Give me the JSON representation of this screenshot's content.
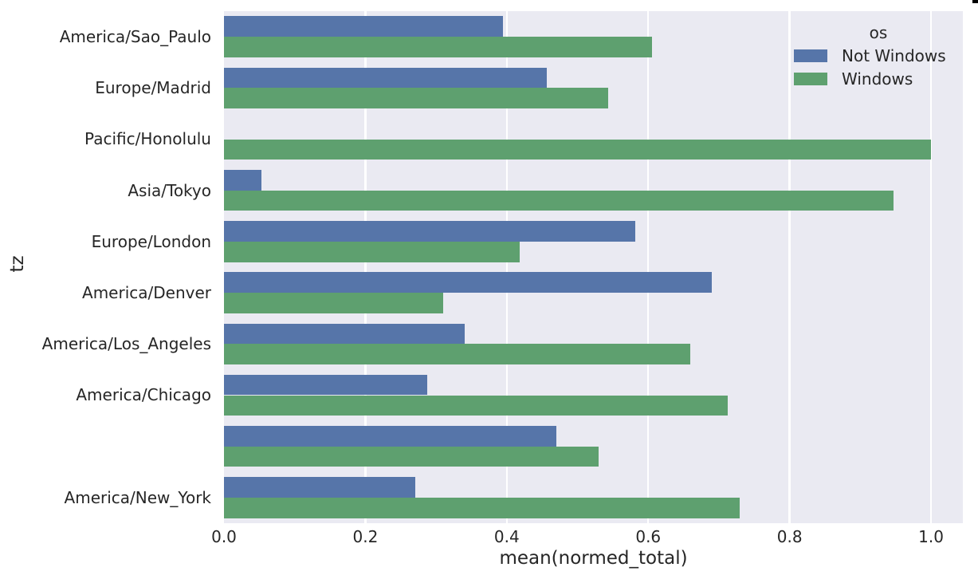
{
  "figure": {
    "x_axis_label": "mean(normed_total)",
    "y_axis_label": "tz"
  },
  "legend": {
    "title": "os",
    "entries": [
      {
        "label": "Not Windows",
        "color": "#5675A9"
      },
      {
        "label": "Windows",
        "color": "#5EA06F"
      }
    ]
  },
  "chart_data": {
    "type": "bar",
    "orientation": "horizontal",
    "title": "",
    "xlabel": "mean(normed_total)",
    "ylabel": "tz",
    "categories": [
      "America/Sao_Paulo",
      "Europe/Madrid",
      "Pacific/Honolulu",
      "Asia/Tokyo",
      "Europe/London",
      "America/Denver",
      "America/Los_Angeles",
      "America/Chicago",
      "",
      "America/New_York"
    ],
    "series": [
      {
        "name": "Not Windows",
        "color": "#5675A9",
        "values": [
          0.395,
          0.457,
          0.0,
          0.053,
          0.582,
          0.69,
          0.34,
          0.288,
          0.47,
          0.271
        ]
      },
      {
        "name": "Windows",
        "color": "#5EA06F",
        "values": [
          0.605,
          0.543,
          1.0,
          0.947,
          0.418,
          0.31,
          0.66,
          0.712,
          0.53,
          0.729
        ]
      }
    ],
    "x_ticks": [
      0.0,
      0.2,
      0.4,
      0.6,
      0.8,
      1.0
    ],
    "xlim": [
      0,
      1.045
    ],
    "grid": true,
    "legend_position": "upper right",
    "plot_background": "#EAEAF2",
    "grid_color": "#FFFFFF",
    "text_color": "#262626"
  }
}
